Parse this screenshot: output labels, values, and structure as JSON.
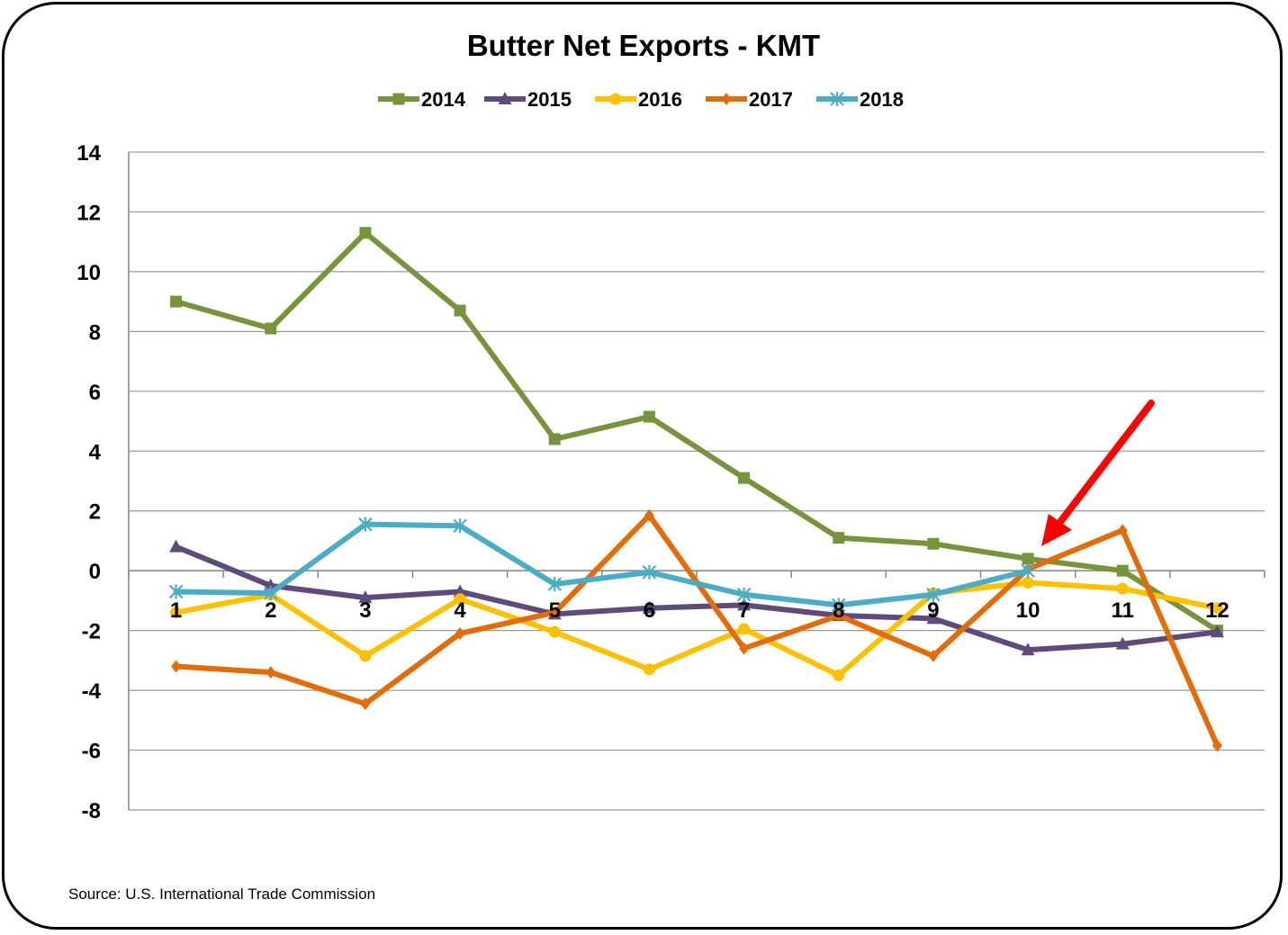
{
  "chart_data": {
    "type": "line",
    "title": "Butter Net Exports - KMT",
    "source": "Source: U.S. International Trade Commission",
    "xlabel": "",
    "ylabel": "",
    "categories": [
      "1",
      "2",
      "3",
      "4",
      "5",
      "6",
      "7",
      "8",
      "9",
      "10",
      "11",
      "12"
    ],
    "yticks": [
      "14",
      "12",
      "10",
      "8",
      "6",
      "4",
      "2",
      "0",
      "-2",
      "-4",
      "-6",
      "-8"
    ],
    "ylim": [
      -8,
      14
    ],
    "grid": true,
    "legend_position": "top",
    "series": [
      {
        "name": "2014",
        "color": "#77933C",
        "marker": "square",
        "values": [
          9.0,
          8.1,
          11.3,
          8.7,
          4.4,
          5.15,
          3.1,
          1.1,
          0.9,
          0.4,
          0.0,
          -2.0
        ]
      },
      {
        "name": "2015",
        "color": "#604A7B",
        "marker": "triangle",
        "values": [
          0.8,
          -0.5,
          -0.9,
          -0.7,
          -1.45,
          -1.25,
          -1.15,
          -1.5,
          -1.6,
          -2.65,
          -2.45,
          -2.05
        ]
      },
      {
        "name": "2016",
        "color": "#FFC000",
        "marker": "circle",
        "values": [
          -1.4,
          -0.8,
          -2.85,
          -0.95,
          -2.05,
          -3.3,
          -1.95,
          -3.5,
          -0.75,
          -0.4,
          -0.6,
          -1.25
        ]
      },
      {
        "name": "2017",
        "color": "#E36C09",
        "marker": "diamond",
        "values": [
          -3.2,
          -3.4,
          -4.45,
          -2.1,
          -1.4,
          1.85,
          -2.6,
          -1.5,
          -2.85,
          0.05,
          1.35,
          -5.85
        ]
      },
      {
        "name": "2018",
        "color": "#4BACC6",
        "marker": "asterisk",
        "values": [
          -0.7,
          -0.75,
          1.55,
          1.5,
          -0.45,
          -0.05,
          -0.8,
          -1.15,
          -0.8,
          0.0,
          null,
          null
        ]
      }
    ],
    "annotation": {
      "type": "arrow",
      "color": "#FF0000",
      "points_to": {
        "x": "10",
        "y": 0.4
      }
    }
  }
}
